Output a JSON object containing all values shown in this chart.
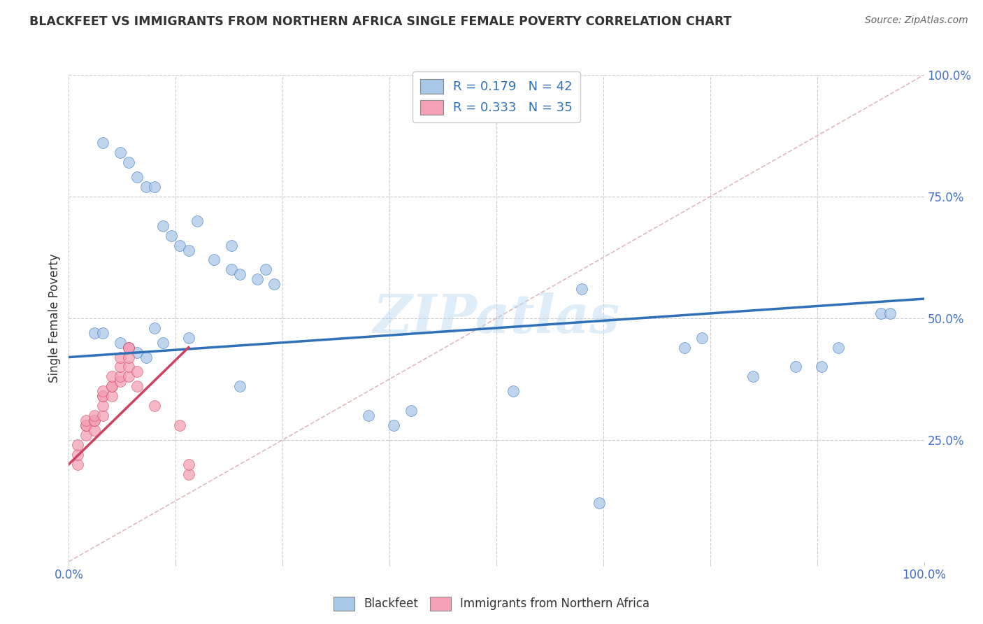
{
  "title": "BLACKFEET VS IMMIGRANTS FROM NORTHERN AFRICA SINGLE FEMALE POVERTY CORRELATION CHART",
  "source": "Source: ZipAtlas.com",
  "ylabel": "Single Female Poverty",
  "watermark": "ZIPAtlas",
  "legend_blue_r": "0.179",
  "legend_blue_n": "42",
  "legend_pink_r": "0.333",
  "legend_pink_n": "35",
  "blue_scatter_x": [
    0.04,
    0.06,
    0.07,
    0.08,
    0.09,
    0.1,
    0.11,
    0.12,
    0.13,
    0.14,
    0.15,
    0.17,
    0.19,
    0.19,
    0.2,
    0.22,
    0.23,
    0.24,
    0.03,
    0.04,
    0.06,
    0.07,
    0.08,
    0.09,
    0.1,
    0.11,
    0.14,
    0.2,
    0.35,
    0.38,
    0.6,
    0.72,
    0.74,
    0.88,
    0.9,
    0.95,
    0.96,
    0.4,
    0.52,
    0.62,
    0.8,
    0.85
  ],
  "blue_scatter_y": [
    0.86,
    0.84,
    0.82,
    0.79,
    0.77,
    0.77,
    0.69,
    0.67,
    0.65,
    0.64,
    0.7,
    0.62,
    0.6,
    0.65,
    0.59,
    0.58,
    0.6,
    0.57,
    0.47,
    0.47,
    0.45,
    0.44,
    0.43,
    0.42,
    0.48,
    0.45,
    0.46,
    0.36,
    0.3,
    0.28,
    0.56,
    0.44,
    0.46,
    0.4,
    0.44,
    0.51,
    0.51,
    0.31,
    0.35,
    0.12,
    0.38,
    0.4
  ],
  "pink_scatter_x": [
    0.01,
    0.01,
    0.01,
    0.02,
    0.02,
    0.02,
    0.02,
    0.03,
    0.03,
    0.03,
    0.03,
    0.04,
    0.04,
    0.04,
    0.04,
    0.04,
    0.05,
    0.05,
    0.05,
    0.05,
    0.06,
    0.06,
    0.06,
    0.06,
    0.07,
    0.07,
    0.07,
    0.07,
    0.07,
    0.08,
    0.08,
    0.1,
    0.13,
    0.14,
    0.14
  ],
  "pink_scatter_y": [
    0.2,
    0.22,
    0.24,
    0.26,
    0.28,
    0.28,
    0.29,
    0.27,
    0.29,
    0.29,
    0.3,
    0.3,
    0.32,
    0.34,
    0.34,
    0.35,
    0.34,
    0.36,
    0.36,
    0.38,
    0.37,
    0.38,
    0.4,
    0.42,
    0.38,
    0.4,
    0.42,
    0.44,
    0.44,
    0.36,
    0.39,
    0.32,
    0.28,
    0.18,
    0.2
  ],
  "blue_line_x": [
    0.0,
    1.0
  ],
  "blue_line_y": [
    0.42,
    0.54
  ],
  "pink_line_x": [
    0.0,
    0.14
  ],
  "pink_line_y": [
    0.2,
    0.44
  ],
  "diagonal_line_x": [
    0.0,
    1.0
  ],
  "diagonal_line_y": [
    0.0,
    1.0
  ],
  "blue_color": "#a8c8e8",
  "pink_color": "#f4a0b5",
  "blue_line_color": "#3070b8",
  "pink_line_color": "#d04060",
  "diagonal_color": "#ddbbbb",
  "background_color": "#ffffff",
  "legend_label_color": "#3070b8",
  "tick_color": "#4472c4",
  "xlim": [
    0.0,
    1.0
  ],
  "ylim": [
    0.0,
    1.0
  ]
}
